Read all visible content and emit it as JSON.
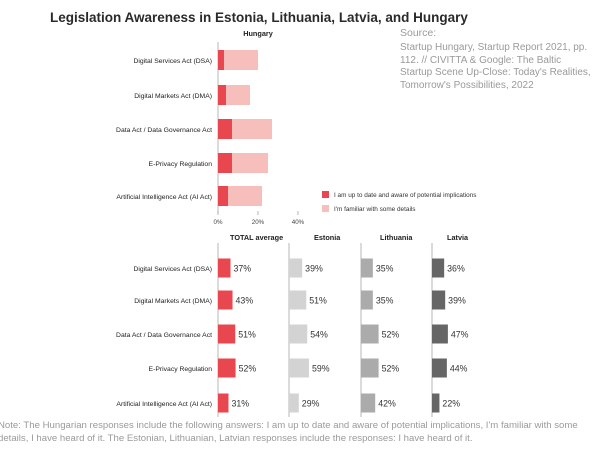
{
  "title": "Legislation Awareness in Estonia, Lithuania, Latvia, and Hungary",
  "source_label": "Source:",
  "source_text": "Startup Hungary, Startup Report 2021, pp. 112. // CIVITTA & Google: The Baltic Startup Scene Up-Close: Today's Realities, Tomorrow's Possibilities, 2022",
  "note": "Note: The Hungarian responses include the following answers: I am up to date and aware of potential implications, I'm familiar with some details, I have heard of it. The Estonian, Lithuanian, Latvian responses include the responses: I have heard of it.",
  "colors": {
    "hu_aware": "#e8474f",
    "hu_familiar": "#f7bfbb",
    "total": "#e8474f",
    "estonia": "#d3d3d3",
    "lithuania": "#ababab",
    "latvia": "#666666"
  },
  "chart_data": [
    {
      "type": "bar",
      "orientation": "horizontal",
      "stacked": true,
      "title": "Hungary",
      "categories": [
        "Digital Services Act (DSA)",
        "Digital Markets Act (DMA)",
        "Data Act / Data Governance Act",
        "E-Privacy Regulation",
        "Artificial Intelligence Act (AI Act)"
      ],
      "series": [
        {
          "name": "I am up to date and aware of potential implications",
          "values": [
            3,
            4,
            7,
            7,
            5
          ]
        },
        {
          "name": "I'm familiar with some details",
          "values": [
            17,
            12,
            20,
            18,
            17
          ]
        }
      ],
      "xlim": [
        0,
        40
      ],
      "xticks": [
        "0%",
        "20%",
        "40%"
      ],
      "legend": "right"
    },
    {
      "type": "bar",
      "orientation": "horizontal",
      "categories": [
        "Digital Services Act (DSA)",
        "Digital Markets Act (DMA)",
        "Data Act / Data Governance Act",
        "E-Privacy Regulation",
        "Artificial Intelligence Act (AI Act)"
      ],
      "series": [
        {
          "name": "TOTAL average",
          "values": [
            37,
            43,
            51,
            52,
            31
          ],
          "labels": [
            "37%",
            "43%",
            "51%",
            "52%",
            "31%"
          ]
        },
        {
          "name": "Estonia",
          "values": [
            39,
            51,
            54,
            59,
            29
          ],
          "labels": [
            "39%",
            "51%",
            "54%",
            "59%",
            "29%"
          ]
        },
        {
          "name": "Lithuania",
          "values": [
            35,
            35,
            52,
            52,
            42
          ],
          "labels": [
            "35%",
            "35%",
            "52%",
            "52%",
            "42%"
          ]
        },
        {
          "name": "Latvia",
          "values": [
            36,
            39,
            47,
            44,
            22
          ],
          "labels": [
            "36%",
            "39%",
            "47%",
            "44%",
            "22%"
          ]
        }
      ],
      "xlim": [
        0,
        100
      ]
    }
  ]
}
